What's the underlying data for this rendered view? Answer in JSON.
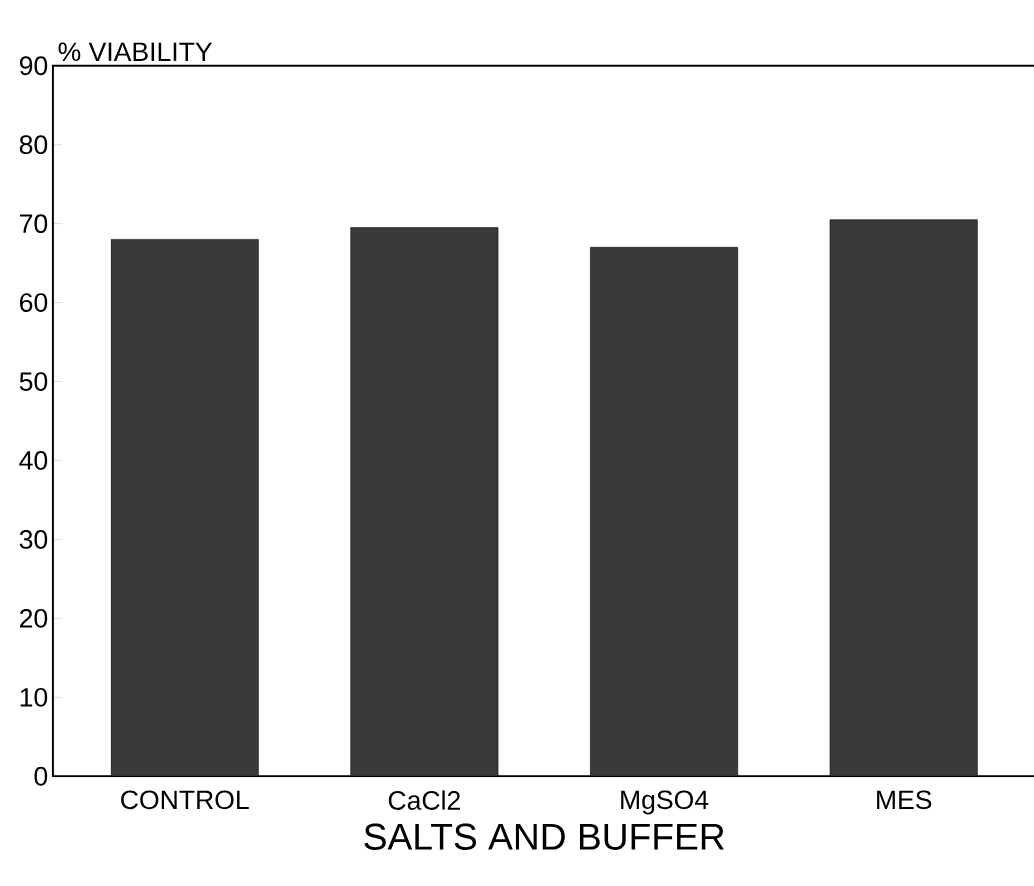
{
  "chart_data": {
    "type": "bar",
    "xlabel": "SALTS AND BUFFER",
    "ylabel": "% VIABILITY",
    "categories": [
      "CONTROL",
      "CaCl2",
      "MgSO4",
      "MES"
    ],
    "values": [
      68,
      69.5,
      67,
      70.5
    ],
    "color": "#3a3a3a",
    "ylim": [
      0,
      90
    ],
    "yticks": [
      0,
      10,
      20,
      30,
      40,
      50,
      60,
      70,
      80,
      90
    ],
    "grid": false
  }
}
